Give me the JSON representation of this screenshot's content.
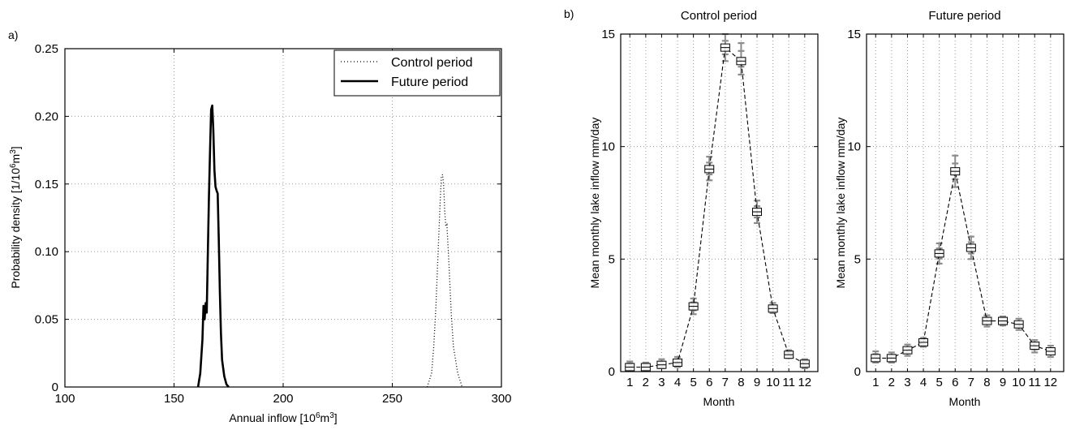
{
  "panel_labels": {
    "a": "a)",
    "b": "b)"
  },
  "colors": {
    "box_line": "#000000",
    "markers": "#8c8c8c",
    "grid": "#9a9a9a"
  },
  "chart_data": [
    {
      "type": "line",
      "panel": "a)",
      "title": "",
      "xlabel_main": "Annual inflow [10",
      "xlabel_sup": "6",
      "xlabel_main2": "m",
      "xlabel_sup2": "3",
      "xlabel_end": "]",
      "ylabel_main": "Probability density [1/10",
      "ylabel_sup": "6",
      "ylabel_main2": "m",
      "ylabel_sup2": "3",
      "ylabel_end": "]",
      "xlim": [
        100,
        300
      ],
      "ylim": [
        0,
        0.25
      ],
      "xticks": [
        "100",
        "150",
        "200",
        "250",
        "300"
      ],
      "yticks": [
        "0",
        "0.05",
        "0.10",
        "0.15",
        "0.20",
        "0.25"
      ],
      "grid": true,
      "legend_position": "top-right",
      "series": [
        {
          "name": "Control period",
          "style": "dotted",
          "x": [
            266,
            268,
            269,
            270,
            271,
            272,
            272.5,
            273,
            273.5,
            274,
            274.5,
            275,
            276,
            277,
            278,
            280,
            282
          ],
          "y": [
            0,
            0.01,
            0.03,
            0.06,
            0.1,
            0.14,
            0.155,
            0.157,
            0.15,
            0.13,
            0.119,
            0.12,
            0.09,
            0.055,
            0.03,
            0.01,
            0
          ]
        },
        {
          "name": "Future period",
          "style": "solid",
          "x": [
            161,
            162,
            163,
            163.5,
            164,
            164.5,
            165,
            165.5,
            166,
            166.5,
            167,
            167.5,
            168,
            168.5,
            169,
            169.5,
            170,
            170.5,
            171,
            171.5,
            172,
            173,
            174,
            175
          ],
          "y": [
            0,
            0.01,
            0.035,
            0.06,
            0.05,
            0.062,
            0.055,
            0.1,
            0.14,
            0.175,
            0.205,
            0.208,
            0.19,
            0.16,
            0.148,
            0.145,
            0.143,
            0.11,
            0.07,
            0.04,
            0.02,
            0.008,
            0.002,
            0
          ]
        }
      ]
    },
    {
      "type": "line",
      "panel": "b)",
      "title": "Control period",
      "xlabel": "Month",
      "ylabel": "Mean monthly lake inflow mm/day",
      "categories": [
        "1",
        "2",
        "3",
        "4",
        "5",
        "6",
        "7",
        "8",
        "9",
        "10",
        "11",
        "12"
      ],
      "ylim": [
        0,
        15
      ],
      "yticks": [
        "0",
        "5",
        "10",
        "15"
      ],
      "grid": true,
      "mean": [
        0.2,
        0.2,
        0.3,
        0.4,
        2.9,
        9.0,
        14.4,
        13.8,
        7.1,
        2.8,
        0.75,
        0.35
      ],
      "spread": [
        [
          0.1,
          0.45
        ],
        [
          0.1,
          0.4
        ],
        [
          0.15,
          0.55
        ],
        [
          0.2,
          0.65
        ],
        [
          2.55,
          3.25
        ],
        [
          8.5,
          9.55
        ],
        [
          13.8,
          15.0
        ],
        [
          13.2,
          14.6
        ],
        [
          6.6,
          7.6
        ],
        [
          2.6,
          3.05
        ],
        [
          0.6,
          0.95
        ],
        [
          0.15,
          0.55
        ]
      ]
    },
    {
      "type": "line",
      "panel": "b)",
      "title": "Future period",
      "xlabel": "Month",
      "ylabel": "Mean monthly lake inflow mm/day",
      "categories": [
        "1",
        "2",
        "3",
        "4",
        "5",
        "6",
        "7",
        "8",
        "9",
        "10",
        "11",
        "12"
      ],
      "ylim": [
        0,
        15
      ],
      "yticks": [
        "0",
        "5",
        "10",
        "15"
      ],
      "grid": true,
      "mean": [
        0.6,
        0.6,
        0.95,
        1.3,
        5.25,
        8.9,
        5.5,
        2.25,
        2.25,
        2.1,
        1.15,
        0.9
      ],
      "spread": [
        [
          0.4,
          0.9
        ],
        [
          0.4,
          0.85
        ],
        [
          0.7,
          1.2
        ],
        [
          1.1,
          1.5
        ],
        [
          4.8,
          5.7
        ],
        [
          8.2,
          9.6
        ],
        [
          5.0,
          6.0
        ],
        [
          2.0,
          2.5
        ],
        [
          2.05,
          2.45
        ],
        [
          1.85,
          2.35
        ],
        [
          0.85,
          1.4
        ],
        [
          0.65,
          1.15
        ]
      ]
    }
  ]
}
